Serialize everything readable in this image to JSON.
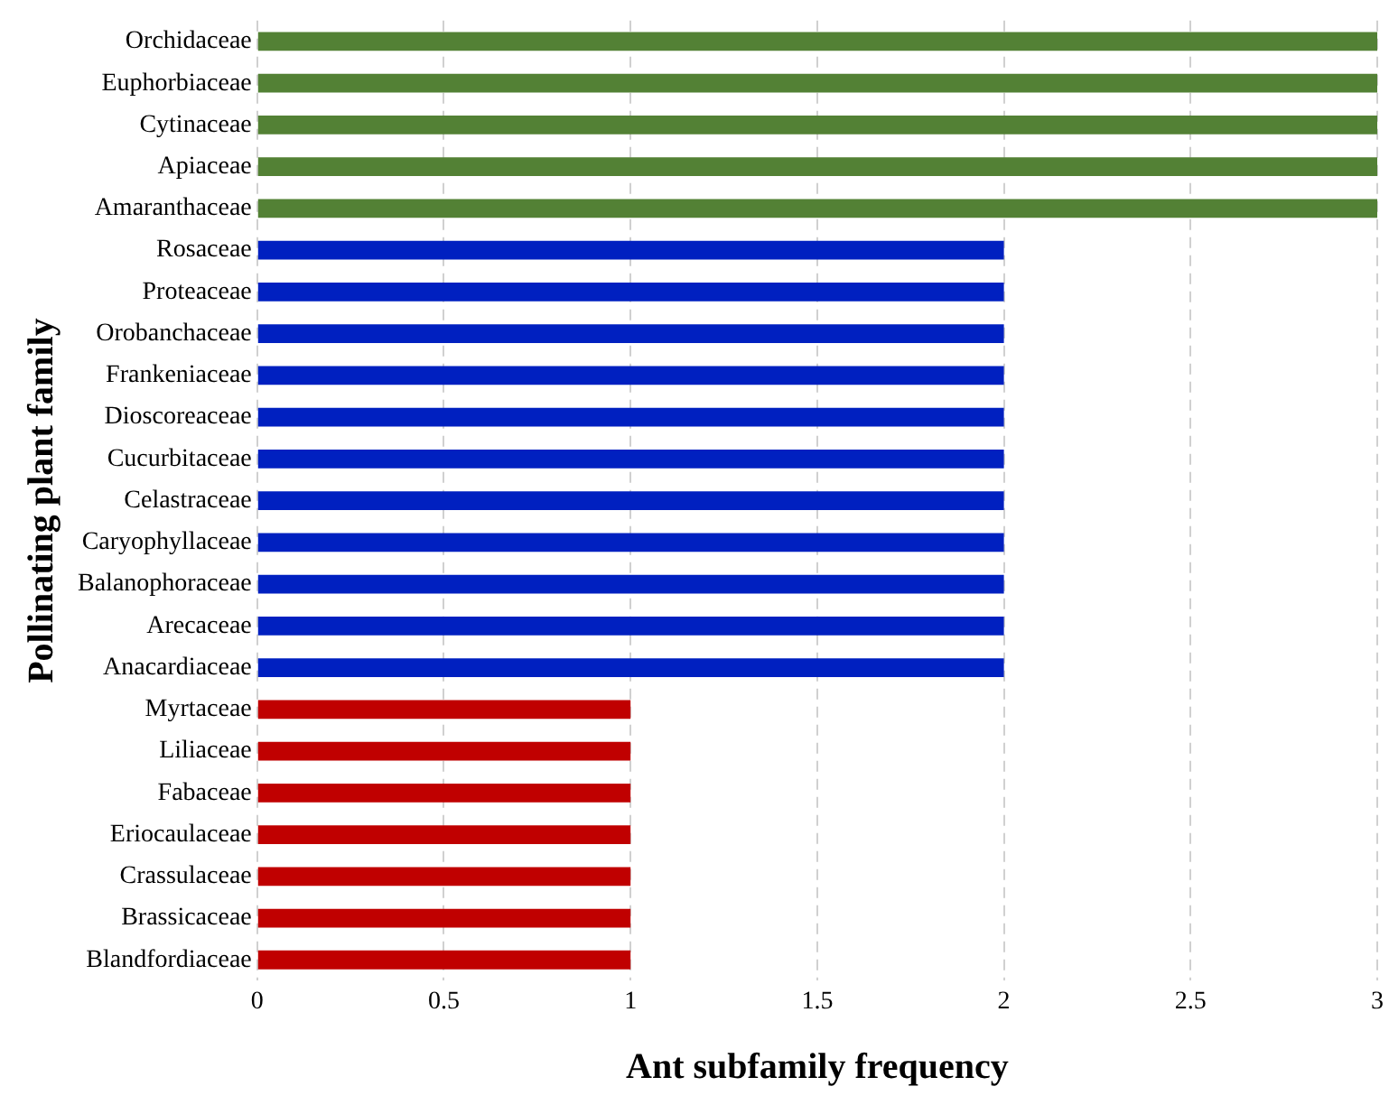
{
  "chart_data": {
    "type": "bar",
    "orientation": "horizontal",
    "xlabel": "Ant subfamily frequency",
    "ylabel": "Pollinating plant family",
    "categories": [
      "Orchidaceae",
      "Euphorbiaceae",
      "Cytinaceae",
      "Apiaceae",
      "Amaranthaceae",
      "Rosaceae",
      "Proteaceae",
      "Orobanchaceae",
      "Frankeniaceae",
      "Dioscoreaceae",
      "Cucurbitaceae",
      "Celastraceae",
      "Caryophyllaceae",
      "Balanophoraceae",
      "Arecaceae",
      "Anacardiaceae",
      "Myrtaceae",
      "Liliaceae",
      "Fabaceae",
      "Eriocaulaceae",
      "Crassulaceae",
      "Brassicaceae",
      "Blandfordiaceae"
    ],
    "values": [
      3,
      3,
      3,
      3,
      3,
      2,
      2,
      2,
      2,
      2,
      2,
      2,
      2,
      2,
      2,
      2,
      1,
      1,
      1,
      1,
      1,
      1,
      1
    ],
    "colors": [
      "#538135",
      "#538135",
      "#538135",
      "#538135",
      "#538135",
      "#0020c0",
      "#0020c0",
      "#0020c0",
      "#0020c0",
      "#0020c0",
      "#0020c0",
      "#0020c0",
      "#0020c0",
      "#0020c0",
      "#0020c0",
      "#0020c0",
      "#c00000",
      "#c00000",
      "#c00000",
      "#c00000",
      "#c00000",
      "#c00000",
      "#c00000"
    ],
    "xlim": [
      0,
      3
    ],
    "xticks": [
      0,
      0.5,
      1,
      1.5,
      2,
      2.5,
      3
    ],
    "grid": "x",
    "legend": false
  }
}
